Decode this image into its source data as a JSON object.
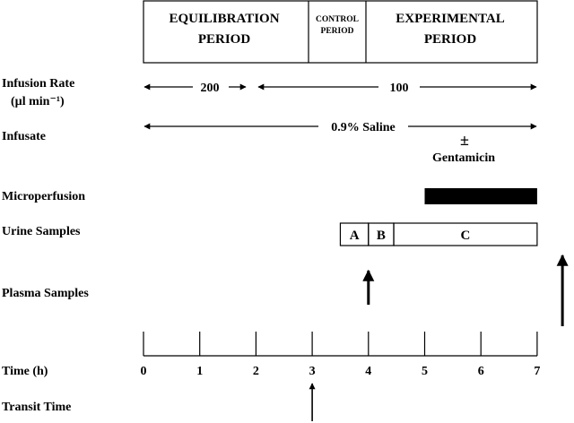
{
  "periods": {
    "equilibration": [
      "EQUILIBRATION",
      "PERIOD"
    ],
    "control": [
      "CONTROL",
      "PERIOD"
    ],
    "experimental": [
      "EXPERIMENTAL",
      "PERIOD"
    ]
  },
  "rows": {
    "infusion_rate": {
      "label_line1": "Infusion Rate",
      "label_line2": "(µl min⁻¹)",
      "rate_low": "200",
      "rate_high": "100"
    },
    "infusate": {
      "label": "Infusate",
      "saline": "0.9% Saline",
      "plus_minus": "±",
      "drug": "Gentamicin"
    },
    "microperfusion": {
      "label": "Microperfusion",
      "start_h": 5,
      "end_h": 7
    },
    "urine_samples": {
      "label": "Urine Samples",
      "segments": [
        {
          "name": "A",
          "start_h": 3.5,
          "end_h": 4.0
        },
        {
          "name": "B",
          "start_h": 4.0,
          "end_h": 4.45
        },
        {
          "name": "C",
          "start_h": 4.45,
          "end_h": 7.0
        }
      ]
    },
    "plasma_samples": {
      "label": "Plasma Samples",
      "times_h": [
        4,
        7.45
      ]
    },
    "time": {
      "label": "Time (h)",
      "ticks": [
        "0",
        "1",
        "2",
        "3",
        "4",
        "5",
        "6",
        "7"
      ]
    },
    "transit_time": {
      "label": "Transit Time",
      "time_h": 3
    }
  }
}
